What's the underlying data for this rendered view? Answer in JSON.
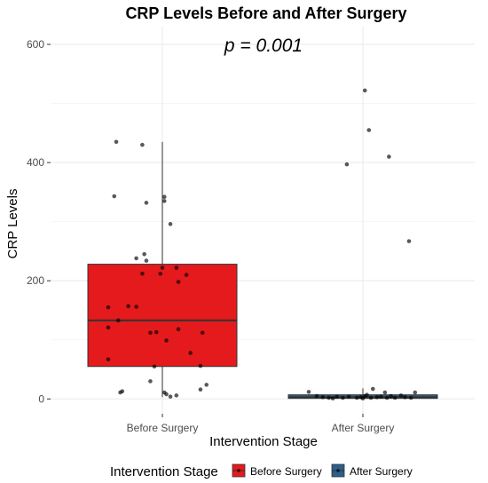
{
  "chart_data": {
    "type": "box",
    "title": "CRP Levels Before and After Surgery",
    "annotation": "p = 0.001",
    "xlabel": "Intervention Stage",
    "ylabel": "CRP Levels",
    "ylim": [
      -25,
      630
    ],
    "yticks": [
      0,
      200,
      400,
      600
    ],
    "yticks_labels": [
      "0",
      "200",
      "400",
      "600"
    ],
    "grid": true,
    "legend": {
      "position": "bottom",
      "title": "Intervention Stage",
      "entries": [
        "Before Surgery",
        "After Surgery"
      ]
    },
    "categories": [
      "Before Surgery",
      "After Surgery"
    ],
    "series": [
      {
        "name": "Before Surgery",
        "color": "#E41A1C",
        "box": {
          "min": 3,
          "q1": 55,
          "median": 133,
          "q3": 228,
          "max": 435
        },
        "points": [
          [
            -0.23,
            435
          ],
          [
            -0.1,
            430
          ],
          [
            -0.24,
            343
          ],
          [
            -0.08,
            332
          ],
          [
            0.01,
            342
          ],
          [
            0.01,
            335
          ],
          [
            0.04,
            296
          ],
          [
            -0.09,
            245
          ],
          [
            -0.08,
            234
          ],
          [
            -0.13,
            238
          ],
          [
            -0.1,
            212
          ],
          [
            -0.01,
            212
          ],
          [
            0.0,
            222
          ],
          [
            0.07,
            222
          ],
          [
            0.12,
            210
          ],
          [
            0.08,
            198
          ],
          [
            -0.27,
            155
          ],
          [
            -0.17,
            157
          ],
          [
            -0.13,
            156
          ],
          [
            -0.22,
            133
          ],
          [
            -0.27,
            121
          ],
          [
            -0.03,
            113
          ],
          [
            -0.06,
            112
          ],
          [
            0.08,
            118
          ],
          [
            0.2,
            112
          ],
          [
            0.02,
            99
          ],
          [
            0.14,
            78
          ],
          [
            -0.27,
            67
          ],
          [
            -0.04,
            55
          ],
          [
            0.19,
            56
          ],
          [
            -0.06,
            30
          ],
          [
            0.22,
            24
          ],
          [
            -0.2,
            13
          ],
          [
            -0.21,
            11
          ],
          [
            0.01,
            11
          ],
          [
            0.02,
            8
          ],
          [
            0.19,
            16
          ],
          [
            0.07,
            6
          ],
          [
            0.04,
            4
          ]
        ]
      },
      {
        "name": "After Surgery",
        "color": "#2C5F8A",
        "box": {
          "min": 0,
          "q1": 1,
          "median": 3,
          "q3": 7,
          "max": 18
        },
        "points": [
          [
            0.01,
            522
          ],
          [
            0.03,
            455
          ],
          [
            -0.08,
            397
          ],
          [
            0.13,
            410
          ],
          [
            0.23,
            267
          ],
          [
            -0.27,
            12
          ],
          [
            -0.2,
            3
          ],
          [
            -0.17,
            2
          ],
          [
            -0.13,
            4
          ],
          [
            -0.1,
            2
          ],
          [
            -0.07,
            4
          ],
          [
            -0.03,
            2
          ],
          [
            -0.01,
            3
          ],
          [
            0.01,
            5
          ],
          [
            0.02,
            7
          ],
          [
            0.04,
            2
          ],
          [
            0.05,
            17
          ],
          [
            0.07,
            3
          ],
          [
            0.09,
            4
          ],
          [
            0.11,
            11
          ],
          [
            0.14,
            5
          ],
          [
            0.16,
            2
          ],
          [
            0.19,
            6
          ],
          [
            0.21,
            3
          ],
          [
            0.24,
            2
          ],
          [
            0.26,
            11
          ],
          [
            -0.23,
            5
          ],
          [
            -0.15,
            1
          ],
          [
            0.0,
            1
          ],
          [
            0.12,
            2
          ]
        ]
      }
    ]
  }
}
